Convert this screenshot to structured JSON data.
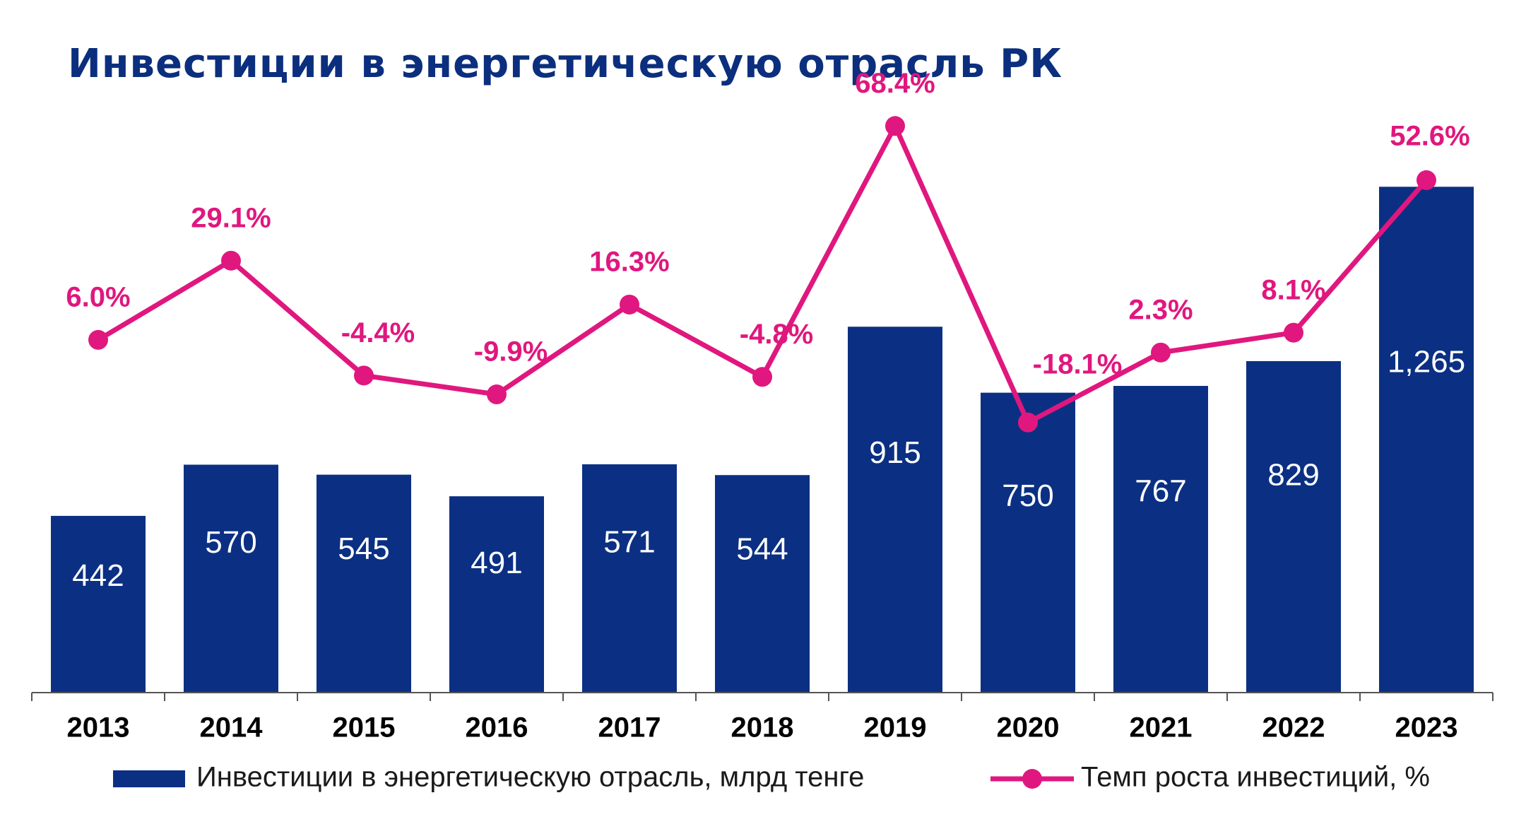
{
  "chart_data": {
    "type": "bar",
    "title": "Инвестиции в энергетическую отрасль РК",
    "categories": [
      "2013",
      "2014",
      "2015",
      "2016",
      "2017",
      "2018",
      "2019",
      "2020",
      "2021",
      "2022",
      "2023"
    ],
    "series": [
      {
        "name": "Инвестиции в энергетическую отрасль, млрд тенге",
        "type": "bar",
        "values": [
          442,
          570,
          545,
          491,
          571,
          544,
          915,
          750,
          767,
          829,
          1265
        ],
        "labels": [
          "442",
          "570",
          "545",
          "491",
          "571",
          "544",
          "915",
          "750",
          "767",
          "829",
          "1,265"
        ],
        "color": "#0b3083"
      },
      {
        "name": "Темп роста инвестиций, %",
        "type": "line",
        "values": [
          6.0,
          29.1,
          -4.4,
          -9.9,
          16.3,
          -4.8,
          68.4,
          -18.1,
          2.3,
          8.1,
          52.6
        ],
        "labels": [
          "6.0%",
          "29.1%",
          "-4.4%",
          "-9.9%",
          "16.3%",
          "-4.8%",
          "68.4%",
          "-18.1%",
          "2.3%",
          "8.1%",
          "52.6%"
        ],
        "color": "#e0177e"
      }
    ],
    "legend_position": "bottom",
    "grid": false
  }
}
